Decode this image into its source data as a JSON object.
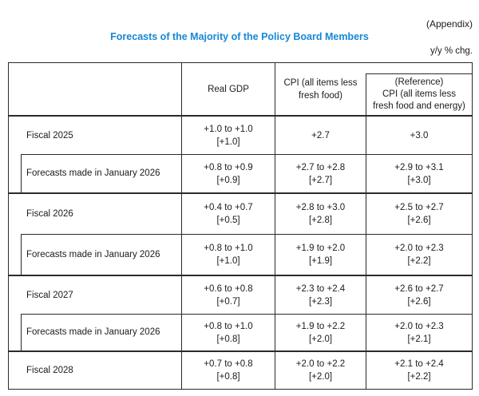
{
  "colors": {
    "accent_blue": "#1787d7"
  },
  "page": {
    "appendix": "(Appendix)",
    "title": "Forecasts of the Majority of the Policy Board Members",
    "unit": "y/y % chg."
  },
  "table": {
    "headers": {
      "gdp": "Real GDP",
      "cpi": "CPI (all items less\nfresh food)",
      "ref": "(Reference)\nCPI (all items less\nfresh food and energy)"
    },
    "rows": [
      {
        "label": "Fiscal 2025",
        "gdp": {
          "range": "+1.0 to +1.0",
          "point": "[+1.0]"
        },
        "cpi": {
          "range": "+2.7",
          "point": ""
        },
        "ref": {
          "range": "+3.0",
          "point": ""
        }
      },
      {
        "label": "Forecasts made in January 2026",
        "gdp": {
          "range": "+0.8 to +0.9",
          "point": "[+0.9]"
        },
        "cpi": {
          "range": "+2.7 to +2.8",
          "point": "[+2.7]"
        },
        "ref": {
          "range": "+2.9 to +3.1",
          "point": "[+3.0]"
        }
      },
      {
        "label": "Fiscal 2026",
        "gdp": {
          "range": "+0.4 to +0.7",
          "point": "[+0.5]"
        },
        "cpi": {
          "range": "+2.8 to +3.0",
          "point": "[+2.8]"
        },
        "ref": {
          "range": "+2.5 to +2.7",
          "point": "[+2.6]"
        }
      },
      {
        "label": "Forecasts made in January 2026",
        "gdp": {
          "range": "+0.8 to +1.0",
          "point": "[+1.0]"
        },
        "cpi": {
          "range": "+1.9 to +2.0",
          "point": "[+1.9]"
        },
        "ref": {
          "range": "+2.0 to +2.3",
          "point": "[+2.2]"
        }
      },
      {
        "label": "Fiscal 2027",
        "gdp": {
          "range": "+0.6 to +0.8",
          "point": "[+0.7]"
        },
        "cpi": {
          "range": "+2.3 to +2.4",
          "point": "[+2.3]"
        },
        "ref": {
          "range": "+2.6 to +2.7",
          "point": "[+2.6]"
        }
      },
      {
        "label": "Forecasts made in January 2026",
        "gdp": {
          "range": "+0.8 to +1.0",
          "point": "[+0.8]"
        },
        "cpi": {
          "range": "+1.9 to +2.2",
          "point": "[+2.0]"
        },
        "ref": {
          "range": "+2.0 to +2.3",
          "point": "[+2.1]"
        }
      },
      {
        "label": "Fiscal 2028",
        "gdp": {
          "range": "+0.7 to +0.8",
          "point": "[+0.8]"
        },
        "cpi": {
          "range": "+2.0 to +2.2",
          "point": "[+2.0]"
        },
        "ref": {
          "range": "+2.1 to +2.4",
          "point": "[+2.2]"
        }
      }
    ]
  }
}
